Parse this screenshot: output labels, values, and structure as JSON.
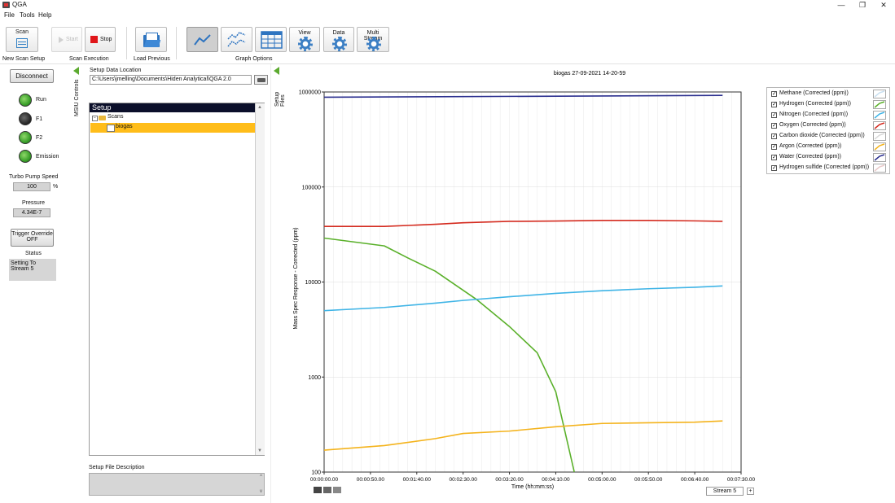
{
  "window": {
    "title": "QGA",
    "minimize": "—",
    "restore": "❐",
    "close": "✕"
  },
  "menu": [
    "File",
    "Tools",
    "Help"
  ],
  "toolbar": {
    "scan_label": "Scan",
    "start_label": "Start",
    "stop_label": "Stop",
    "view_label": "View",
    "data_label": "Data",
    "multistream_label": "Multi Stream",
    "groups": {
      "new_scan_setup": "New Scan Setup",
      "scan_execution": "Scan Execution",
      "load_previous": "Load Previous",
      "graph_options": "Graph Options"
    }
  },
  "left_panel": {
    "disconnect_label": "Disconnect",
    "vertical_tab": "MSIU Controls",
    "indicators": [
      {
        "label": "Run",
        "state": "on"
      },
      {
        "label": "F1",
        "state": "dim"
      },
      {
        "label": "F2",
        "state": "on"
      },
      {
        "label": "Emission",
        "state": "on"
      }
    ],
    "turbo_label": "Turbo Pump Speed",
    "turbo_value": "100",
    "turbo_unit": "%",
    "pressure_label": "Pressure",
    "pressure_value": "4.34E-7",
    "trigger_label": "Trigger Override OFF",
    "status_label": "Status",
    "status_value": "Setting To Stream 5"
  },
  "setup_panel": {
    "location_label": "Setup Data Location",
    "location_value": "C:\\Users\\jmelling\\Documents\\Hiden Analytical\\QGA 2.0",
    "vertical_tab": "Setup Files",
    "tree_header": "Setup",
    "tree_folder": "Scans",
    "tree_selected": "biogas",
    "description_label": "Setup File Description"
  },
  "chart_data": {
    "type": "line",
    "title": "biogas 27-09-2021 14-20-59",
    "xlabel": "Time (hh:mm:ss)",
    "ylabel": "Mass Spec Response - Corrected (ppm)",
    "yscale": "log",
    "ylim": [
      100,
      1000000
    ],
    "xlim": [
      "00:00:00.00",
      "00:07:30.00"
    ],
    "x_ticks": [
      "00:00:00.00",
      "00:00:50.00",
      "00:01:40.00",
      "00:02:30.00",
      "00:03:20.00",
      "00:04:10.00",
      "00:05:00.00",
      "00:05:50.00",
      "00:06:40.00",
      "00:07:30.00"
    ],
    "y_ticks": [
      "100",
      "1000",
      "10000",
      "100000",
      "1000000"
    ],
    "grid": true,
    "legend_position": "right",
    "series": [
      {
        "name": "Methane (Corrected (ppm))",
        "color": "#c8dff0",
        "x": [],
        "y": []
      },
      {
        "name": "Hydrogen (Corrected (ppm))",
        "color": "#5ab02a",
        "x": [
          "00:00:00",
          "00:01:05",
          "00:01:30",
          "00:02:00",
          "00:02:45",
          "00:03:20",
          "00:03:50",
          "00:04:10",
          "00:04:30"
        ],
        "y": [
          29000,
          24000,
          18000,
          13000,
          6500,
          3400,
          1800,
          700,
          100
        ]
      },
      {
        "name": "Nitrogen (Corrected (ppm))",
        "color": "#3fb4e6",
        "x": [
          "00:00:00",
          "00:01:05",
          "00:02:00",
          "00:02:30",
          "00:03:20",
          "00:04:10",
          "00:05:00",
          "00:05:50",
          "00:06:40",
          "00:07:10"
        ],
        "y": [
          5000,
          5400,
          6000,
          6400,
          7000,
          7600,
          8100,
          8500,
          8800,
          9100
        ]
      },
      {
        "name": "Oxygen (Corrected (ppm))",
        "color": "#d42a1e",
        "x": [
          "00:00:00",
          "00:01:05",
          "00:02:00",
          "00:02:30",
          "00:03:20",
          "00:04:10",
          "00:05:00",
          "00:05:50",
          "00:06:40",
          "00:07:10"
        ],
        "y": [
          38500,
          38500,
          40500,
          42000,
          43500,
          43800,
          44500,
          44500,
          44000,
          43500
        ]
      },
      {
        "name": "Carbon dioxide (Corrected (ppm))",
        "color": "#d9d9d9",
        "x": [],
        "y": []
      },
      {
        "name": "Argon (Corrected (ppm))",
        "color": "#f4b31c",
        "x": [
          "00:00:00",
          "00:01:05",
          "00:02:00",
          "00:02:30",
          "00:03:20",
          "00:04:10",
          "00:05:00",
          "00:05:50",
          "00:06:40",
          "00:07:10"
        ],
        "y": [
          170,
          190,
          225,
          255,
          270,
          300,
          325,
          330,
          335,
          345
        ]
      },
      {
        "name": "Water (Corrected (ppm))",
        "color": "#2b2f8f",
        "x": [
          "00:00:00",
          "00:07:10"
        ],
        "y": [
          880000,
          920000
        ]
      },
      {
        "name": "Hydrogen sulfide (Corrected (ppm))",
        "color": "#e8c9c9",
        "x": [],
        "y": []
      }
    ]
  },
  "chart_footer": {
    "stream_label": "Stream 5",
    "stream_inc": "+"
  }
}
